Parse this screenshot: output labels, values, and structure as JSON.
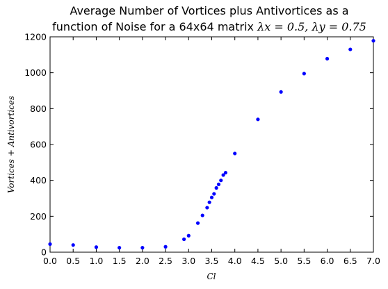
{
  "chart_data": {
    "type": "scatter",
    "title_line1": "Average Number of Vortices plus Antivortices as a",
    "title_line2_text": "function of Noise for a 64x64 matrix ",
    "title_line2_math": "λx = 0.5, λy = 0.75",
    "xlabel": "Cl",
    "ylabel": "Vortices + Antivortices",
    "xlim": [
      0.0,
      7.0
    ],
    "ylim": [
      0,
      1200
    ],
    "xticks": [
      "0.0",
      "0.5",
      "1.0",
      "1.5",
      "2.0",
      "2.5",
      "3.0",
      "3.5",
      "4.0",
      "4.5",
      "5.0",
      "5.5",
      "6.0",
      "6.5",
      "7.0"
    ],
    "yticks": [
      "0",
      "200",
      "400",
      "600",
      "800",
      "1000",
      "1200"
    ],
    "grid": false,
    "legend": "none",
    "marker_color": "#0000ff",
    "series": [
      {
        "points": [
          {
            "x": 0.0,
            "y": 45
          },
          {
            "x": 0.5,
            "y": 40
          },
          {
            "x": 1.0,
            "y": 28
          },
          {
            "x": 1.5,
            "y": 25
          },
          {
            "x": 2.0,
            "y": 25
          },
          {
            "x": 2.5,
            "y": 30
          },
          {
            "x": 2.9,
            "y": 72
          },
          {
            "x": 3.0,
            "y": 92
          },
          {
            "x": 3.2,
            "y": 162
          },
          {
            "x": 3.3,
            "y": 205
          },
          {
            "x": 3.4,
            "y": 248
          },
          {
            "x": 3.45,
            "y": 278
          },
          {
            "x": 3.5,
            "y": 305
          },
          {
            "x": 3.55,
            "y": 325
          },
          {
            "x": 3.6,
            "y": 358
          },
          {
            "x": 3.65,
            "y": 378
          },
          {
            "x": 3.7,
            "y": 400
          },
          {
            "x": 3.75,
            "y": 430
          },
          {
            "x": 3.8,
            "y": 443
          },
          {
            "x": 4.0,
            "y": 550
          },
          {
            "x": 4.5,
            "y": 740
          },
          {
            "x": 5.0,
            "y": 893
          },
          {
            "x": 5.5,
            "y": 995
          },
          {
            "x": 6.0,
            "y": 1078
          },
          {
            "x": 6.5,
            "y": 1130
          },
          {
            "x": 7.0,
            "y": 1178
          }
        ]
      }
    ]
  }
}
